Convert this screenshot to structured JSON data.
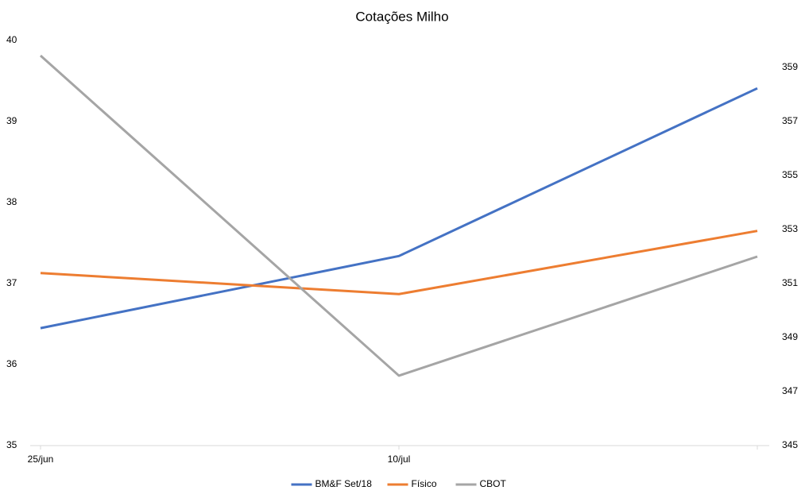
{
  "chart_data": {
    "type": "line",
    "title": "Cotações Milho",
    "categories": [
      "25/jun",
      "10/jul",
      null
    ],
    "series": [
      {
        "name": "BM&F Set/18",
        "color": "#4472c4",
        "values": [
          36.45,
          37.34,
          39.41
        ]
      },
      {
        "name": "Físico",
        "color": "#ed7d31",
        "values": [
          37.13,
          36.87,
          37.65
        ]
      },
      {
        "name": "CBOT",
        "color": "#a5a5a5",
        "axis": "y2",
        "values": [
          359.44,
          347.59,
          352.0
        ]
      }
    ],
    "ylim": [
      35,
      40
    ],
    "yticks": [
      35,
      36,
      37,
      38,
      39,
      40
    ],
    "y2lim": [
      345,
      360
    ],
    "y2ticks": [
      345,
      347,
      349,
      351,
      353,
      355,
      357,
      359
    ],
    "legend": "bottom"
  }
}
